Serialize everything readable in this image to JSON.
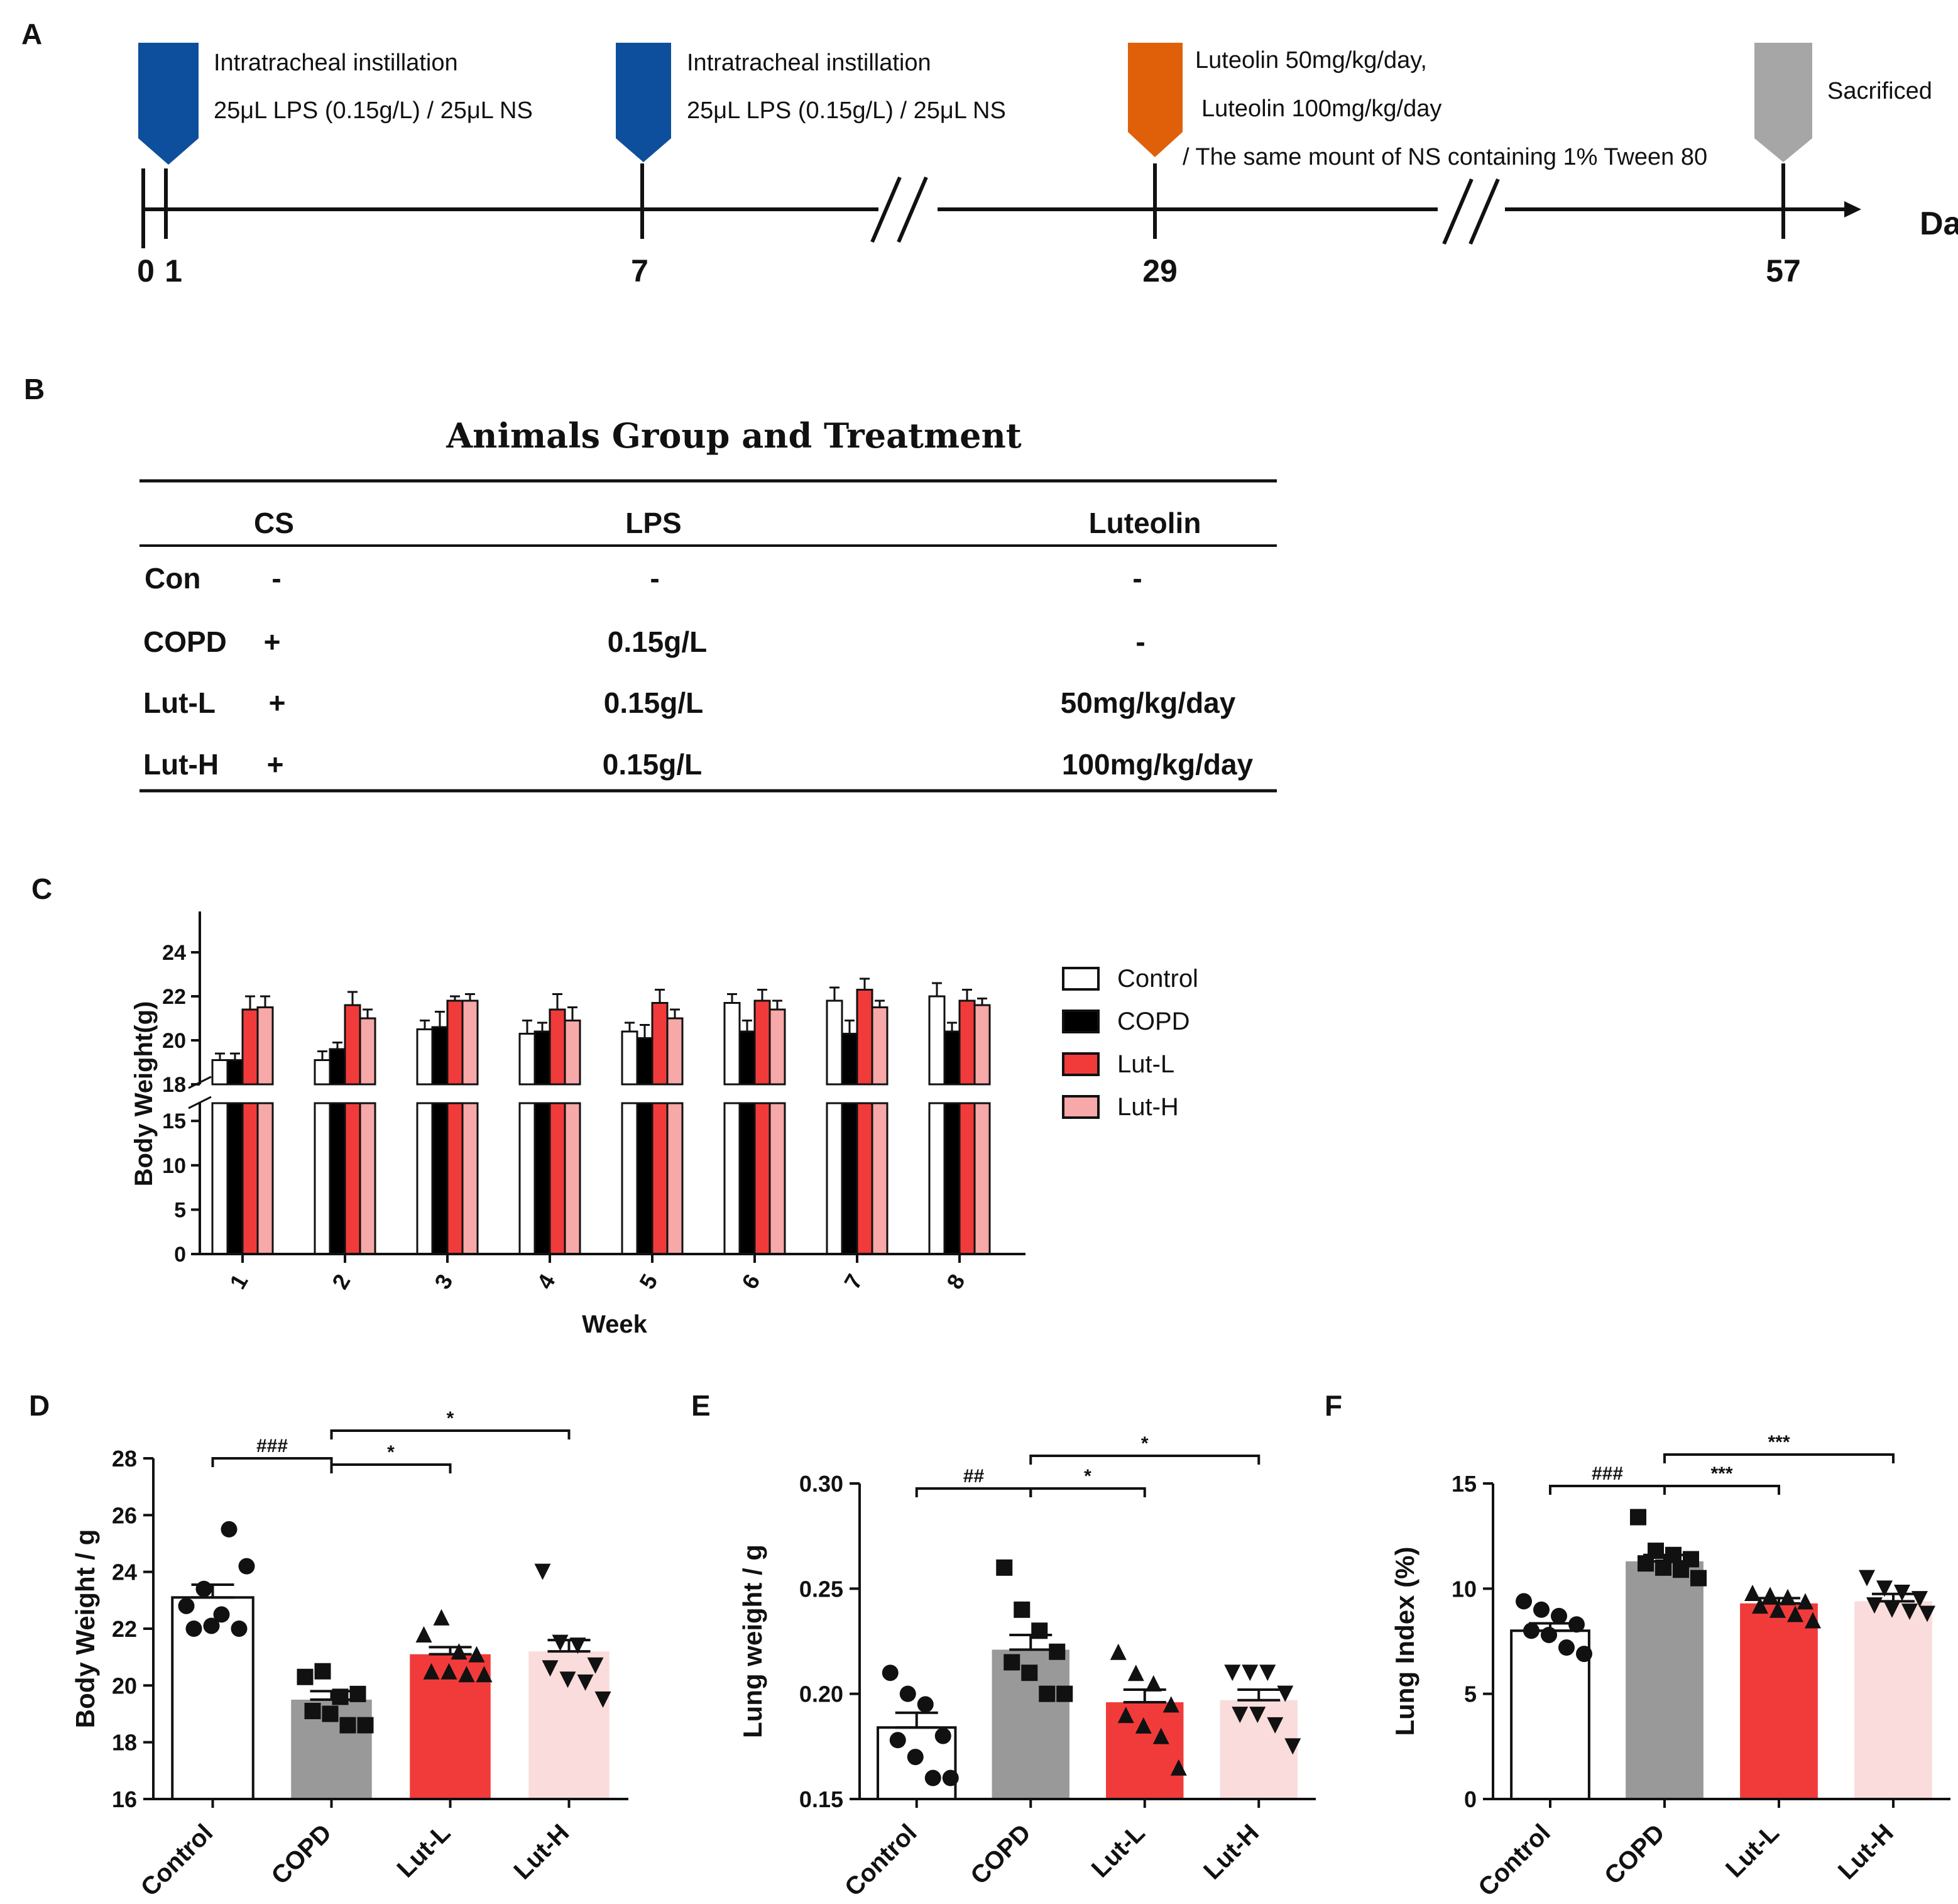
{
  "panel_labels": {
    "a": "A",
    "b": "B",
    "c": "C",
    "d": "D",
    "e": "E",
    "f": "F"
  },
  "colors": {
    "control": "#ffffff",
    "copd": "#000000",
    "copd_bar_dot": "#999999",
    "lut_l": "#f13b3b",
    "lut_h": "#f7a8a8",
    "lut_h_dot": "#fadcdc",
    "instill": "#0d4f9c",
    "luteolin": "#e0600a",
    "sacrificed": "#a6a6a6"
  },
  "timeline": {
    "day_label": "Day",
    "ticks": [
      "0",
      "1",
      "7",
      "29",
      "57"
    ],
    "events": [
      {
        "lines": [
          "Intratracheal instillation",
          "25μL LPS (0.15g/L) / 25μL NS"
        ]
      },
      {
        "lines": [
          "Intratracheal instillation",
          "25μL LPS (0.15g/L) / 25μL NS"
        ]
      },
      {
        "lines": [
          "Luteolin 50mg/kg/day,",
          "Luteolin 100mg/kg/day",
          "/ The same mount of NS containing 1% Tween 80"
        ]
      },
      {
        "lines": [
          "Sacrificed"
        ]
      }
    ]
  },
  "table": {
    "title": "Animals Group and Treatment",
    "headers": [
      "CS",
      "LPS",
      "Luteolin"
    ],
    "rows": [
      {
        "group": "Con",
        "cs": "-",
        "lps": "-",
        "luteolin": "-"
      },
      {
        "group": "COPD",
        "cs": "+",
        "lps": "0.15g/L",
        "luteolin": "-"
      },
      {
        "group": "Lut-L",
        "cs": "+",
        "lps": "0.15g/L",
        "luteolin": "50mg/kg/day"
      },
      {
        "group": "Lut-H",
        "cs": "+",
        "lps": "0.15g/L",
        "luteolin": "100mg/kg/day"
      }
    ]
  },
  "chart_data": [
    {
      "type": "bar",
      "panel": "C",
      "title": "",
      "xlabel": "Week",
      "ylabel": "Body Weight(g)",
      "categories": [
        "1",
        "2",
        "3",
        "4",
        "5",
        "6",
        "7",
        "8"
      ],
      "y_axis_break": {
        "lower": [
          0,
          17
        ],
        "upper": [
          18,
          25
        ]
      },
      "yticks_lower": [
        0,
        5,
        10,
        15
      ],
      "yticks_upper": [
        18,
        20,
        22,
        24
      ],
      "legend": "right",
      "series": [
        {
          "name": "Control",
          "values": [
            19.1,
            19.1,
            20.5,
            20.3,
            20.4,
            21.7,
            21.8,
            22.0
          ],
          "errors": [
            0.3,
            0.4,
            0.4,
            0.6,
            0.4,
            0.4,
            0.6,
            0.6
          ]
        },
        {
          "name": "COPD",
          "values": [
            19.1,
            19.6,
            20.6,
            20.4,
            20.1,
            20.4,
            20.3,
            20.4
          ],
          "errors": [
            0.3,
            0.3,
            0.7,
            0.4,
            0.6,
            0.5,
            0.6,
            0.4
          ]
        },
        {
          "name": "Lut-L",
          "values": [
            21.4,
            21.6,
            21.8,
            21.4,
            21.7,
            21.8,
            22.3,
            21.8
          ],
          "errors": [
            0.6,
            0.6,
            0.2,
            0.7,
            0.6,
            0.5,
            0.5,
            0.5
          ]
        },
        {
          "name": "Lut-H",
          "values": [
            21.5,
            21.0,
            21.8,
            20.9,
            21.0,
            21.4,
            21.5,
            21.6
          ],
          "errors": [
            0.5,
            0.4,
            0.3,
            0.6,
            0.4,
            0.4,
            0.3,
            0.3
          ]
        }
      ]
    },
    {
      "type": "bar",
      "panel": "D",
      "title": "",
      "xlabel": "",
      "ylabel": "Body Weight / g",
      "categories": [
        "Control",
        "COPD",
        "Lut-L",
        "Lut-H"
      ],
      "ylim": [
        16,
        28
      ],
      "yticks": [
        16,
        18,
        20,
        22,
        24,
        26,
        28
      ],
      "values": [
        23.1,
        19.5,
        21.1,
        21.2
      ],
      "errors": [
        0.45,
        0.3,
        0.25,
        0.4
      ],
      "points": [
        [
          22.8,
          23.4,
          22.5,
          22.0,
          22.0,
          22.1,
          25.5,
          24.2
        ],
        [
          20.3,
          20.5,
          19.6,
          19.7,
          19.1,
          19.0,
          18.6,
          18.6
        ],
        [
          21.8,
          22.4,
          21.2,
          21.1,
          20.5,
          20.5,
          20.4,
          20.4
        ],
        [
          24.0,
          21.5,
          21.4,
          20.7,
          20.6,
          20.2,
          20.1,
          19.5
        ]
      ],
      "markers": [
        "circle",
        "square",
        "triangle-up",
        "triangle-down"
      ],
      "significance": [
        {
          "from": 0,
          "to": 1,
          "label": "###"
        },
        {
          "from": 1,
          "to": 2,
          "label": "*"
        },
        {
          "from": 1,
          "to": 3,
          "label": "*"
        }
      ]
    },
    {
      "type": "bar",
      "panel": "E",
      "title": "",
      "xlabel": "",
      "ylabel": "Lung weight / g",
      "categories": [
        "Control",
        "COPD",
        "Lut-L",
        "Lut-H"
      ],
      "ylim": [
        0.15,
        0.3
      ],
      "yticks": [
        0.15,
        0.2,
        0.25,
        0.3
      ],
      "tick_format": "0.00",
      "values": [
        0.184,
        0.221,
        0.196,
        0.197
      ],
      "errors": [
        0.007,
        0.007,
        0.006,
        0.005
      ],
      "points": [
        [
          0.21,
          0.2,
          0.195,
          0.18,
          0.178,
          0.17,
          0.16,
          0.16
        ],
        [
          0.26,
          0.24,
          0.23,
          0.22,
          0.215,
          0.21,
          0.2,
          0.2
        ],
        [
          0.22,
          0.21,
          0.205,
          0.195,
          0.19,
          0.185,
          0.18,
          0.165
        ],
        [
          0.21,
          0.21,
          0.21,
          0.2,
          0.19,
          0.19,
          0.185,
          0.175
        ]
      ],
      "markers": [
        "circle",
        "square",
        "triangle-up",
        "triangle-down"
      ],
      "significance": [
        {
          "from": 0,
          "to": 1,
          "label": "##"
        },
        {
          "from": 1,
          "to": 2,
          "label": "*"
        },
        {
          "from": 1,
          "to": 3,
          "label": "*"
        }
      ]
    },
    {
      "type": "bar",
      "panel": "F",
      "title": "",
      "xlabel": "",
      "ylabel": "Lung Index (%)",
      "categories": [
        "Control",
        "COPD",
        "Lut-L",
        "Lut-H"
      ],
      "ylim": [
        0,
        15
      ],
      "yticks": [
        0,
        5,
        10,
        15
      ],
      "values": [
        8.0,
        11.3,
        9.3,
        9.4
      ],
      "errors": [
        0.35,
        0.3,
        0.25,
        0.35
      ],
      "points": [
        [
          9.4,
          9.0,
          8.7,
          8.3,
          8.0,
          7.8,
          7.2,
          6.9
        ],
        [
          13.4,
          11.8,
          11.6,
          11.4,
          11.2,
          11.0,
          10.9,
          10.5
        ],
        [
          9.8,
          9.7,
          9.6,
          9.4,
          9.2,
          9.0,
          8.8,
          8.5
        ],
        [
          10.5,
          10.0,
          9.8,
          9.5,
          9.2,
          9.0,
          8.9,
          8.8
        ]
      ],
      "markers": [
        "circle",
        "square",
        "triangle-up",
        "triangle-down"
      ],
      "significance": [
        {
          "from": 0,
          "to": 1,
          "label": "###"
        },
        {
          "from": 1,
          "to": 2,
          "label": "***"
        },
        {
          "from": 1,
          "to": 3,
          "label": "***"
        }
      ]
    }
  ]
}
